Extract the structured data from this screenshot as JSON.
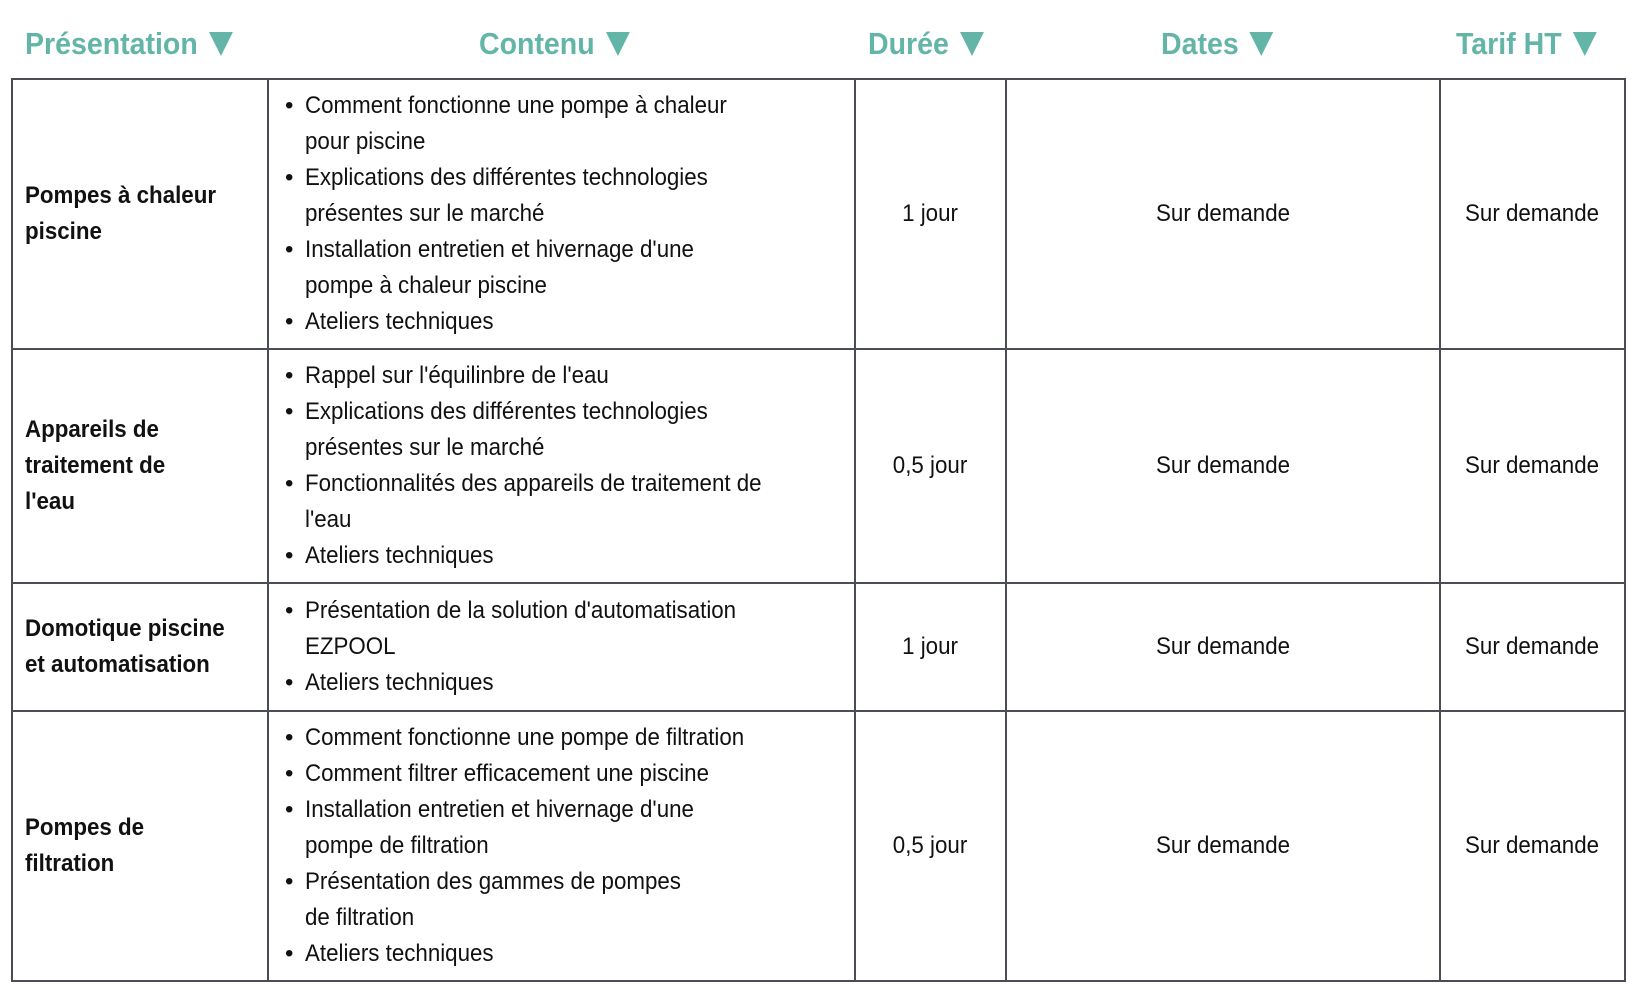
{
  "accent_color": "#63b5a8",
  "headers": [
    {
      "label": "Présentation",
      "icon": "triangle-down-icon"
    },
    {
      "label": "Contenu",
      "icon": "triangle-down-icon"
    },
    {
      "label": "Durée",
      "icon": "triangle-down-icon"
    },
    {
      "label": "Dates",
      "icon": "triangle-down-icon"
    },
    {
      "label": "Tarif HT",
      "icon": "triangle-down-icon"
    }
  ],
  "rows": [
    {
      "presentation": [
        "Pompes à chaleur",
        "piscine"
      ],
      "contenu": [
        [
          "Comment fonctionne une pompe à chaleur",
          "pour piscine"
        ],
        [
          "Explications des différentes technologies",
          "présentes sur le marché"
        ],
        [
          "Installation entretien et hivernage d'une",
          "pompe à chaleur piscine"
        ],
        [
          "Ateliers techniques"
        ]
      ],
      "duree": "1 jour",
      "dates": "Sur demande",
      "tarif": "Sur demande"
    },
    {
      "presentation": [
        "Appareils de",
        "traitement de",
        "l'eau"
      ],
      "contenu": [
        [
          "Rappel sur l'équilinbre de l'eau"
        ],
        [
          "Explications des différentes technologies",
          "présentes sur le marché"
        ],
        [
          "Fonctionnalités des appareils de traitement de",
          "l'eau"
        ],
        [
          "Ateliers techniques"
        ]
      ],
      "duree": "0,5 jour",
      "dates": "Sur demande",
      "tarif": "Sur demande"
    },
    {
      "presentation": [
        "Domotique piscine",
        "et automatisation"
      ],
      "contenu": [
        [
          "Présentation de la solution d'automatisation",
          "EZPOOL"
        ],
        [
          "Ateliers techniques"
        ]
      ],
      "duree": "1 jour",
      "dates": "Sur demande",
      "tarif": "Sur demande"
    },
    {
      "presentation": [
        "Pompes de",
        "filtration"
      ],
      "contenu": [
        [
          "Comment fonctionne une pompe de filtration"
        ],
        [
          "Comment filtrer efficacement une piscine"
        ],
        [
          "Installation entretien et hivernage d'une",
          "pompe de filtration"
        ],
        [
          "Présentation des gammes de pompes",
          "de filtration"
        ],
        [
          "Ateliers techniques"
        ]
      ],
      "duree": "0,5 jour",
      "dates": "Sur demande",
      "tarif": "Sur demande"
    }
  ]
}
